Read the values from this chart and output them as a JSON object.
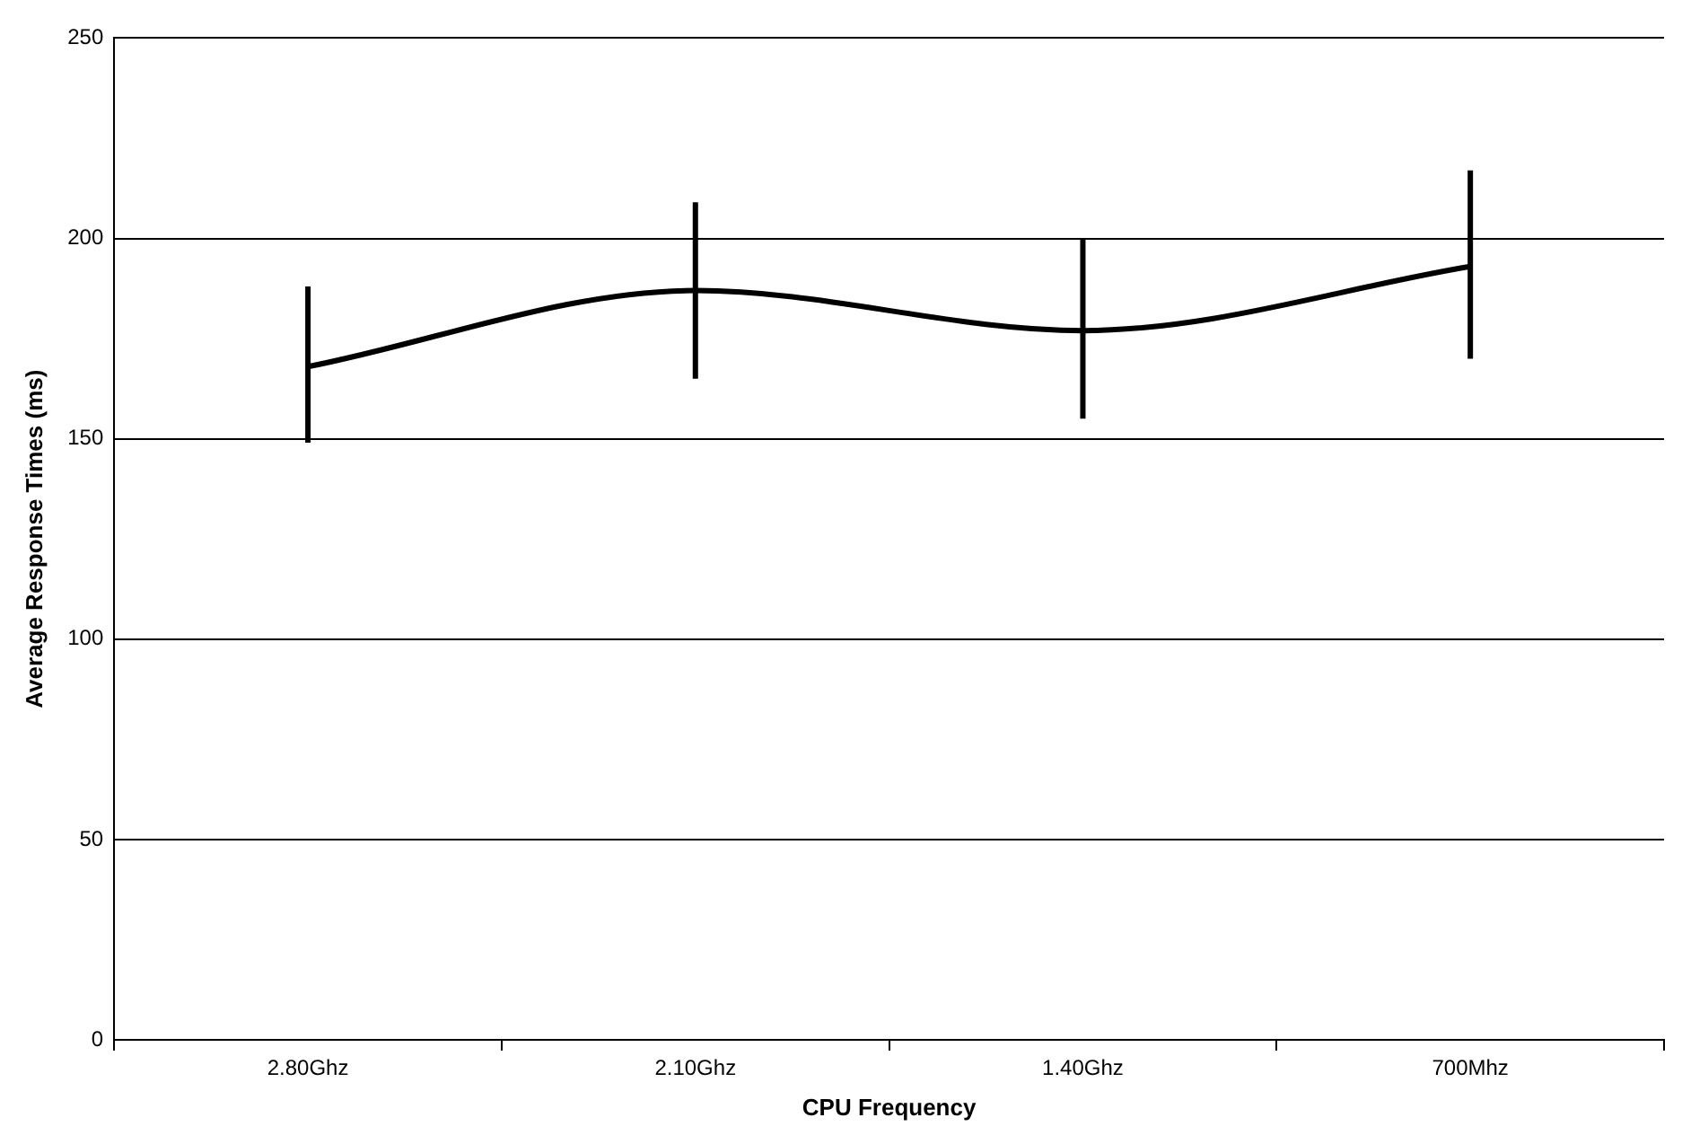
{
  "chart_data": {
    "type": "line",
    "xlabel": "CPU Frequency",
    "ylabel": "Average Response Times (ms)",
    "categories": [
      "2.80Ghz",
      "2.10Ghz",
      "1.40Ghz",
      "700Mhz"
    ],
    "values": [
      168,
      187,
      177,
      193
    ],
    "errors": [
      [
        149,
        188
      ],
      [
        165,
        209
      ],
      [
        155,
        200
      ],
      [
        170,
        217
      ]
    ],
    "color": "#000000",
    "marker": "none",
    "ylim": [
      0,
      250
    ],
    "yticks": [
      0,
      50,
      100,
      150,
      200,
      250
    ],
    "grid": "y"
  }
}
